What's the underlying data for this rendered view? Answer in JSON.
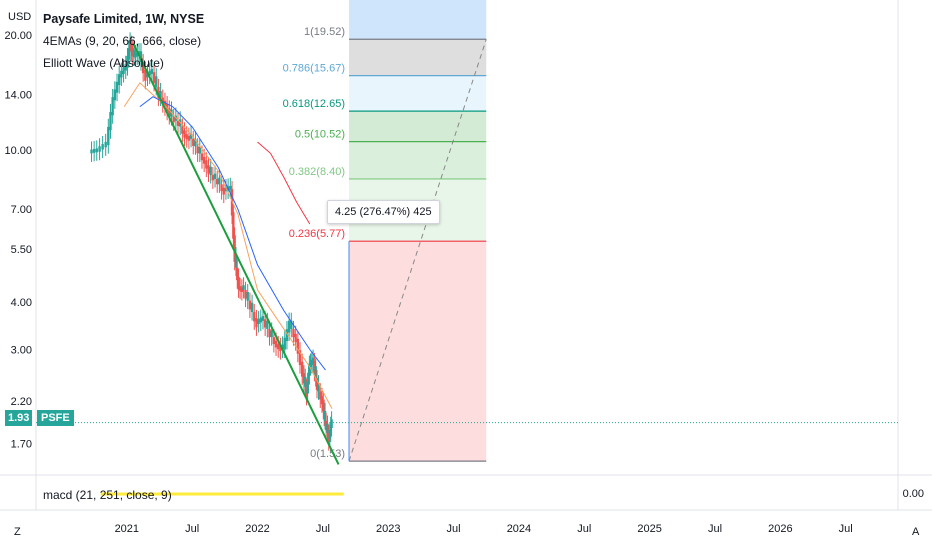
{
  "header": {
    "title": "Paysafe Limited, 1W, NYSE",
    "indicator1": "4EMAs (9, 20, 66, 666, close)",
    "indicator2": "Elliott Wave (Absolute)",
    "currency": "USD"
  },
  "macd": {
    "label": "macd (21, 251, close, 9)",
    "value": "0.00"
  },
  "last_price": {
    "value": "1.93",
    "ticker": "PSFE"
  },
  "measure": {
    "label": "4.25 (276.47%) 425"
  },
  "corner_left": "Z",
  "corner_right": "A",
  "chart_data": {
    "type": "candlestick",
    "y_scale": "log",
    "ylim": [
      1.45,
      24
    ],
    "y_ticks": [
      "20.00",
      "14.00",
      "10.00",
      "7.00",
      "5.50",
      "4.00",
      "3.00",
      "2.20",
      "1.70"
    ],
    "y_tick_values": [
      20,
      14,
      10,
      7,
      5.5,
      4,
      3,
      2.2,
      1.7
    ],
    "x_ticks": [
      "2021",
      "Jul",
      "2022",
      "Jul",
      "2023",
      "Jul",
      "2024",
      "Jul",
      "2025",
      "Jul",
      "2026",
      "Jul"
    ],
    "x_tick_values": [
      2021.0,
      2021.5,
      2022.0,
      2022.5,
      2023.0,
      2023.5,
      2024.0,
      2024.5,
      2025.0,
      2025.5,
      2026.0,
      2026.5
    ],
    "xlim": [
      2020.55,
      2026.9
    ],
    "price_path": [
      [
        2020.72,
        9.8
      ],
      [
        2020.78,
        9.9
      ],
      [
        2020.85,
        10.3
      ],
      [
        2020.9,
        13.5
      ],
      [
        2020.95,
        15.5
      ],
      [
        2021.0,
        16.5
      ],
      [
        2021.03,
        19.0
      ],
      [
        2021.06,
        17.5
      ],
      [
        2021.1,
        17.8
      ],
      [
        2021.15,
        15.5
      ],
      [
        2021.2,
        16.0
      ],
      [
        2021.25,
        14.0
      ],
      [
        2021.3,
        13.2
      ],
      [
        2021.35,
        12.2
      ],
      [
        2021.4,
        11.8
      ],
      [
        2021.45,
        11.0
      ],
      [
        2021.5,
        10.7
      ],
      [
        2021.55,
        10.0
      ],
      [
        2021.6,
        9.4
      ],
      [
        2021.65,
        8.6
      ],
      [
        2021.7,
        8.3
      ],
      [
        2021.75,
        7.8
      ],
      [
        2021.8,
        7.9
      ],
      [
        2021.83,
        5.2
      ],
      [
        2021.86,
        4.4
      ],
      [
        2021.9,
        4.3
      ],
      [
        2021.95,
        3.9
      ],
      [
        2022.0,
        3.5
      ],
      [
        2022.05,
        3.6
      ],
      [
        2022.1,
        3.3
      ],
      [
        2022.15,
        3.1
      ],
      [
        2022.2,
        3.0
      ],
      [
        2022.25,
        3.5
      ],
      [
        2022.3,
        3.2
      ],
      [
        2022.35,
        2.6
      ],
      [
        2022.38,
        2.3
      ],
      [
        2022.4,
        2.7
      ],
      [
        2022.43,
        2.8
      ],
      [
        2022.46,
        2.4
      ],
      [
        2022.5,
        2.2
      ],
      [
        2022.52,
        1.95
      ],
      [
        2022.55,
        1.75
      ],
      [
        2022.57,
        1.93
      ]
    ],
    "ema_series": [
      {
        "color": "#f7a35c",
        "points": [
          [
            2020.98,
            13.0
          ],
          [
            2021.1,
            15.0
          ],
          [
            2021.3,
            13.0
          ],
          [
            2021.5,
            10.9
          ],
          [
            2021.7,
            8.8
          ],
          [
            2021.85,
            6.8
          ],
          [
            2022.0,
            4.3
          ],
          [
            2022.2,
            3.4
          ],
          [
            2022.4,
            2.7
          ],
          [
            2022.57,
            2.1
          ]
        ]
      },
      {
        "color": "#2962ff",
        "points": [
          [
            2021.1,
            13.0
          ],
          [
            2021.2,
            13.8
          ],
          [
            2021.35,
            13.0
          ],
          [
            2021.5,
            11.5
          ],
          [
            2021.7,
            9.0
          ],
          [
            2021.85,
            7.0
          ],
          [
            2022.0,
            5.0
          ],
          [
            2022.2,
            3.8
          ],
          [
            2022.4,
            3.0
          ],
          [
            2022.52,
            2.65
          ]
        ]
      },
      {
        "color": "#f23645",
        "points": [
          [
            2022.0,
            10.5
          ],
          [
            2022.1,
            9.8
          ],
          [
            2022.2,
            8.5
          ],
          [
            2022.3,
            7.3
          ],
          [
            2022.4,
            6.4
          ]
        ]
      }
    ],
    "trendline": {
      "color": "#1b9e3e",
      "from": [
        2021.05,
        19.0
      ],
      "to": [
        2022.62,
        1.5
      ]
    },
    "fib_levels": [
      {
        "label": "1(19.52)",
        "value": 19.52,
        "color": "#787b86"
      },
      {
        "label": "0.786(15.67)",
        "value": 15.67,
        "color": "#5fa8d3"
      },
      {
        "label": "0.618(12.65)",
        "value": 12.65,
        "color": "#089981"
      },
      {
        "label": "0.5(10.52)",
        "value": 10.52,
        "color": "#4caf50"
      },
      {
        "label": "0.382(8.40)",
        "value": 8.4,
        "color": "#81c784"
      },
      {
        "label": "0.236(5.77)",
        "value": 5.77,
        "color": "#f23645"
      },
      {
        "label": "0(1.53)",
        "value": 1.53,
        "color": "#787b86"
      }
    ],
    "fib_x_range": [
      2022.7,
      2023.75
    ],
    "macd_value": 0.0
  }
}
